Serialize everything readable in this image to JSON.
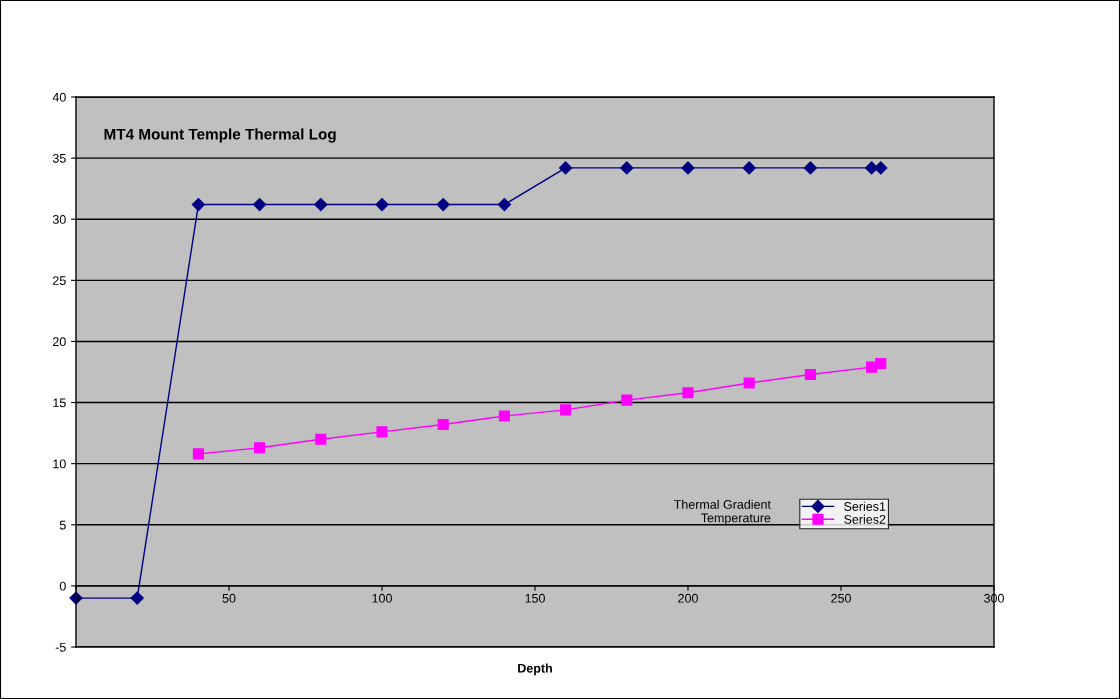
{
  "chart_data": {
    "type": "line",
    "title": "MT4 Mount Temple Thermal Log",
    "xlabel": "Depth",
    "series": [
      {
        "name": "Series1",
        "color": "#000080",
        "marker": "diamond",
        "x": [
          0,
          20,
          40,
          60,
          80,
          100,
          120,
          140,
          160,
          180,
          200,
          220,
          240,
          260,
          263
        ],
        "values": [
          -1,
          -1,
          31.2,
          31.2,
          31.2,
          31.2,
          31.2,
          31.2,
          34.2,
          34.2,
          34.2,
          34.2,
          34.2,
          34.2,
          34.2
        ]
      },
      {
        "name": "Series2",
        "color": "#ff00ff",
        "marker": "square",
        "x": [
          40,
          60,
          80,
          100,
          120,
          140,
          160,
          180,
          200,
          220,
          240,
          260,
          263
        ],
        "values": [
          10.8,
          11.3,
          12.0,
          12.6,
          13.2,
          13.9,
          14.4,
          15.2,
          15.8,
          16.6,
          17.3,
          17.9,
          18.2
        ]
      }
    ],
    "xlim": [
      0,
      300
    ],
    "xticks": [
      0,
      50,
      100,
      150,
      200,
      250,
      300
    ],
    "ylim": [
      -5,
      40
    ],
    "yticks": [
      -5,
      0,
      5,
      10,
      15,
      20,
      25,
      30,
      35,
      40
    ],
    "grid": "y",
    "legend": "bottom right",
    "annotations": [
      "Thermal Gradient\nTemperature"
    ]
  }
}
